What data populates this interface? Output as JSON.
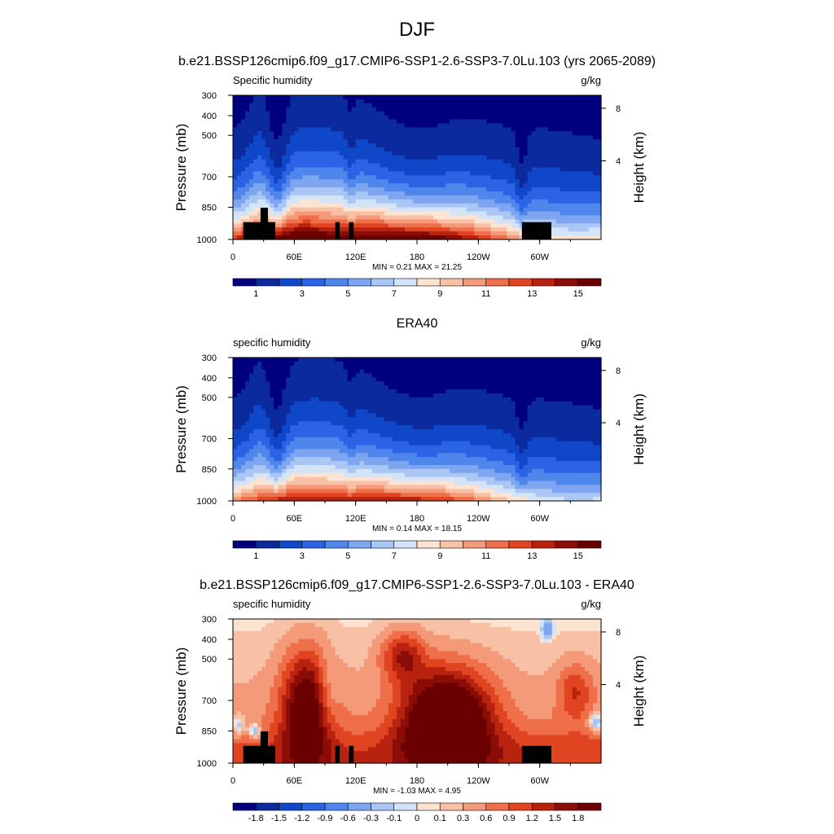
{
  "figure": {
    "title": "DJF"
  },
  "chart_data": [
    {
      "type": "heatmap",
      "title": "b.e21.BSSP126cmip6.f09_g17.CMIP6-SSP1-2.6-SSP3-7.0Lu.103 (yrs 2065-2089)",
      "variable_label": "Specific humidity",
      "units": "g/kg",
      "ylabel": "Pressure (mb)",
      "ylabel_right": "Height (km)",
      "x_ticks": [
        "0",
        "60E",
        "120E",
        "180",
        "120W",
        "60W"
      ],
      "y_ticks": [
        "300",
        "400",
        "500",
        "700",
        "850",
        "1000"
      ],
      "y_ticks_right": [
        "8",
        "4"
      ],
      "minmax_text": "MIN =   0.21  MAX =  21.25",
      "colorbar_labels": [
        "1",
        "3",
        "5",
        "7",
        "9",
        "11",
        "13",
        "15"
      ],
      "stats": {
        "min": 0.21,
        "max": 21.25
      },
      "kind": "abs",
      "terrain": true
    },
    {
      "type": "heatmap",
      "title": "ERA40",
      "variable_label": "specific humidity",
      "units": "g/kg",
      "ylabel": "Pressure (mb)",
      "ylabel_right": "Height (km)",
      "x_ticks": [
        "0",
        "60E",
        "120E",
        "180",
        "120W",
        "60W"
      ],
      "y_ticks": [
        "300",
        "400",
        "500",
        "700",
        "850",
        "1000"
      ],
      "y_ticks_right": [
        "8",
        "4"
      ],
      "minmax_text": "MIN =   0.14  MAX =  18.15",
      "colorbar_labels": [
        "1",
        "3",
        "5",
        "7",
        "9",
        "11",
        "13",
        "15"
      ],
      "stats": {
        "min": 0.14,
        "max": 18.15
      },
      "kind": "abs",
      "terrain": false
    },
    {
      "type": "heatmap",
      "title": "b.e21.BSSP126cmip6.f09_g17.CMIP6-SSP1-2.6-SSP3-7.0Lu.103 - ERA40",
      "variable_label": "specific humidity",
      "units": "g/kg",
      "ylabel": "Pressure (mb)",
      "ylabel_right": "Height (km)",
      "x_ticks": [
        "0",
        "60E",
        "120E",
        "180",
        "120W",
        "60W"
      ],
      "y_ticks": [
        "300",
        "400",
        "500",
        "700",
        "850",
        "1000"
      ],
      "y_ticks_right": [
        "8",
        "4"
      ],
      "minmax_text": "MIN =  -1.03  MAX =   4.95",
      "colorbar_labels": [
        "-1.8",
        "-1.5",
        "-1.2",
        "-0.9",
        "-0.6",
        "-0.3",
        "-0.1",
        "0",
        "0.1",
        "0.3",
        "0.6",
        "0.9",
        "1.2",
        "1.5",
        "1.8"
      ],
      "stats": {
        "min": -1.03,
        "max": 4.95
      },
      "kind": "diff",
      "terrain": true
    }
  ],
  "colors": {
    "palette": [
      "#00007f",
      "#0a2a9e",
      "#0f47c8",
      "#2a63e4",
      "#4f86ec",
      "#7ea6f0",
      "#a9c6f4",
      "#d3e3f8",
      "#fde3d2",
      "#f8c1a6",
      "#f59a78",
      "#ee6f4a",
      "#e04420",
      "#b8230f",
      "#8a0d08",
      "#6a0000"
    ],
    "terrain": "#000000"
  }
}
